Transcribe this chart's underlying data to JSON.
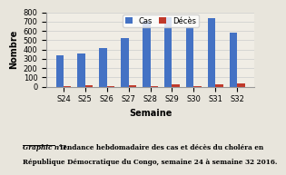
{
  "semaines": [
    "S24",
    "S25",
    "S26",
    "S27",
    "S28",
    "S29",
    "S30",
    "S31",
    "S32"
  ],
  "cas": [
    340,
    360,
    415,
    525,
    710,
    750,
    635,
    740,
    583
  ],
  "deces": [
    10,
    15,
    10,
    12,
    8,
    28,
    10,
    25,
    34
  ],
  "cas_color": "#4472C4",
  "deces_color": "#C0392B",
  "xlabel": "Semaine",
  "ylabel": "Nombre",
  "ylim": [
    0,
    800
  ],
  "yticks": [
    0,
    100,
    200,
    300,
    400,
    500,
    600,
    700,
    800
  ],
  "legend_cas": "Cas",
  "legend_deces": "Décès",
  "caption_bold": "Graphic n°1:",
  "caption_text1": "  Tendance hebdomadaire des cas et décès du choléra en",
  "caption_text2": "République Démocratique du Congo, semaine 24 à semaine 32 2016.",
  "bg_color": "#E8E5DC",
  "plot_bg_color": "#F0EDE5"
}
